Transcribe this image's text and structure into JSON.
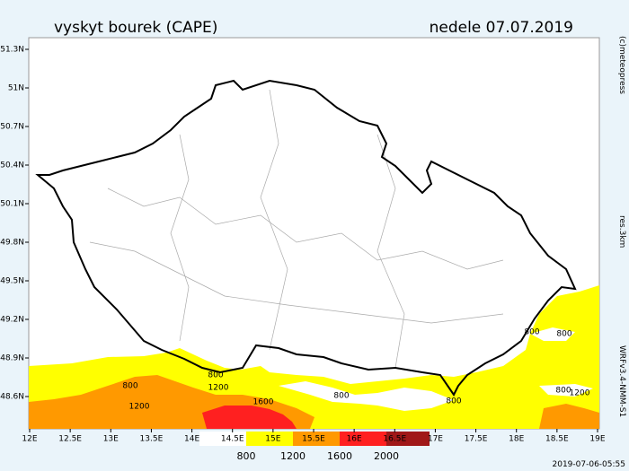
{
  "header": {
    "title": "vyskyt bourek (CAPE)",
    "date": "nedele 07.07.2019"
  },
  "lat_ticks": [
    "51.3N",
    "51N",
    "50.7N",
    "50.4N",
    "50.1N",
    "49.8N",
    "49.5N",
    "49.2N",
    "48.9N",
    "48.6N"
  ],
  "lon_ticks": [
    "12E",
    "12.5E",
    "13E",
    "13.5E",
    "14E",
    "14.5E",
    "15E",
    "15.5E",
    "16E",
    "16.5E",
    "17E",
    "17.5E",
    "18E",
    "18.5E",
    "19E"
  ],
  "contour_labels": [
    "800",
    "1200",
    "800",
    "1200",
    "1600",
    "800",
    "800",
    "800",
    "800",
    "800",
    "1200"
  ],
  "legend": {
    "labels": [
      "800",
      "1200",
      "1600",
      "2000"
    ]
  },
  "side": {
    "copyright": "(c)meteopress",
    "resolution": "res.3km",
    "model": "WRFv3.4-NMM-S1"
  },
  "footer": {
    "timestamp": "2019-07-06-05:55"
  }
}
